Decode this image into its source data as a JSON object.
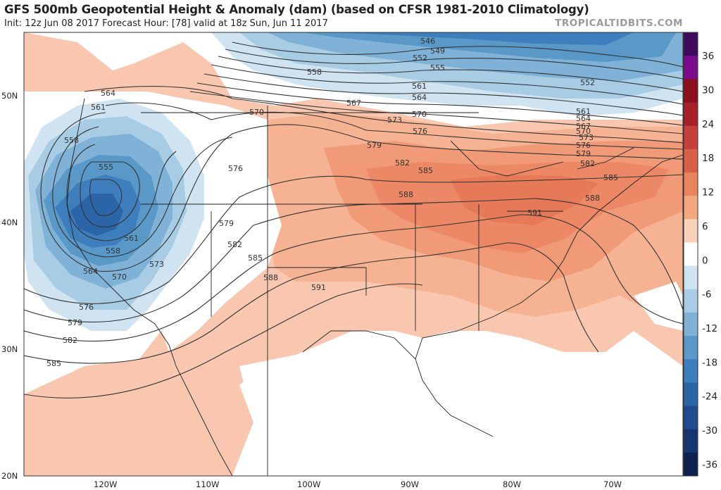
{
  "header": {
    "title": "GFS 500mb Geopotential Height & Anomaly (dam) (based on CFSR 1981-2010 Climatology)",
    "subtitle": "Init: 12z Jun 08 2017   Forecast Hour: [78]   valid at 18z Sun, Jun 11 2017",
    "brand": "TROPICALTIDBITS.COM"
  },
  "axes": {
    "lat_labels": [
      "50N",
      "40N",
      "30N",
      "20N"
    ],
    "lon_labels": [
      "120W",
      "110W",
      "100W",
      "90W",
      "80W",
      "70W"
    ]
  },
  "colorbar": {
    "labels": [
      "36",
      "30",
      "24",
      "18",
      "12",
      "6",
      "0",
      "-6",
      "-12",
      "-18",
      "-24",
      "-30",
      "-36"
    ],
    "colors": [
      "#3d0a5c",
      "#7a0c8c",
      "#8c1020",
      "#a8202a",
      "#c4403c",
      "#d86048",
      "#e8845e",
      "#f4a880",
      "#fad2bc",
      "#ffffff",
      "#cfe3f0",
      "#a8cce4",
      "#80b2d8",
      "#5a98c8",
      "#3e7ebc",
      "#2c64a8",
      "#1e4c8c",
      "#163670",
      "#0e2252"
    ]
  },
  "contour_labels": [
    "546",
    "549",
    "552",
    "555",
    "558",
    "561",
    "564",
    "567",
    "570",
    "573",
    "576",
    "579",
    "582",
    "585",
    "588",
    "591"
  ],
  "map_labels": {
    "nw": [
      "564",
      "561",
      "558",
      "555",
      "558",
      "561",
      "564",
      "567",
      "570",
      "573",
      "576",
      "579",
      "582",
      "585"
    ],
    "center": [
      "570",
      "576",
      "579",
      "582",
      "585",
      "588",
      "591"
    ],
    "north": [
      "546",
      "549",
      "552",
      "555",
      "558",
      "561",
      "564",
      "567",
      "570",
      "573",
      "576",
      "579",
      "582",
      "585",
      "588",
      "591"
    ],
    "east": [
      "552",
      "561",
      "564",
      "567",
      "570",
      "573",
      "576",
      "579",
      "582",
      "585",
      "588"
    ]
  }
}
